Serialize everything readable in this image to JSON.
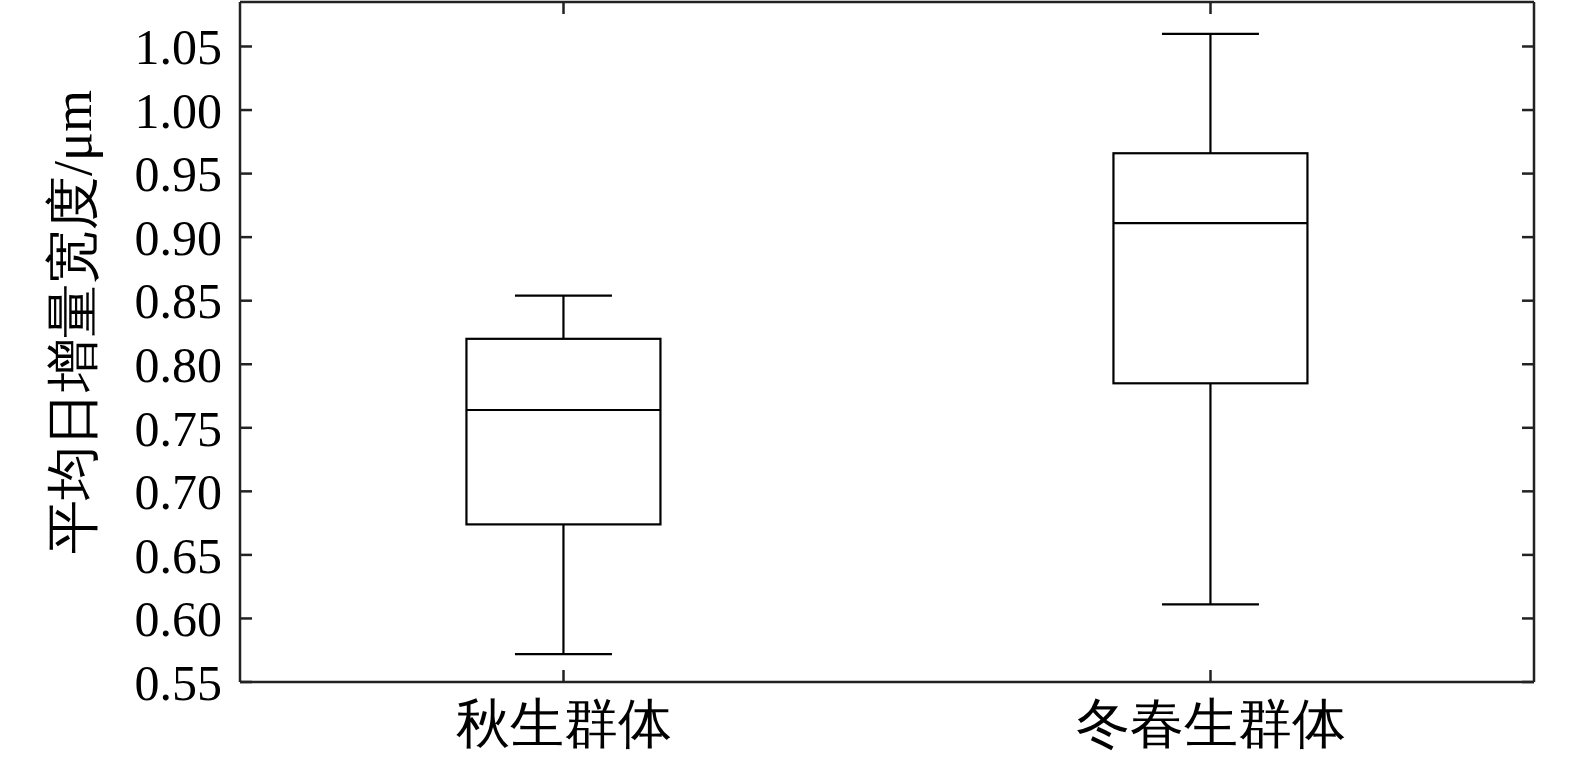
{
  "chart_data": {
    "type": "box",
    "categories": [
      "秋生群体",
      "冬春生群体"
    ],
    "boxes": [
      {
        "low": 0.572,
        "q1": 0.674,
        "median": 0.764,
        "q3": 0.82,
        "high": 0.854
      },
      {
        "low": 0.611,
        "q1": 0.785,
        "median": 0.911,
        "q3": 0.966,
        "high": 1.06
      }
    ],
    "color": "#000000",
    "ylabel": "平均日增量宽度/μm",
    "ylim": [
      0.55,
      1.085
    ],
    "yticks": [
      {
        "value": 0.55,
        "label": "0.55"
      },
      {
        "value": 0.6,
        "label": "0.60"
      },
      {
        "value": 0.65,
        "label": "0.65"
      },
      {
        "value": 0.7,
        "label": "0.70"
      },
      {
        "value": 0.75,
        "label": "0.75"
      },
      {
        "value": 0.8,
        "label": "0.80"
      },
      {
        "value": 0.85,
        "label": "0.85"
      },
      {
        "value": 0.9,
        "label": "0.90"
      },
      {
        "value": 0.95,
        "label": "0.95"
      },
      {
        "value": 1.0,
        "label": "1.00"
      },
      {
        "value": 1.05,
        "label": "1.05"
      }
    ]
  }
}
